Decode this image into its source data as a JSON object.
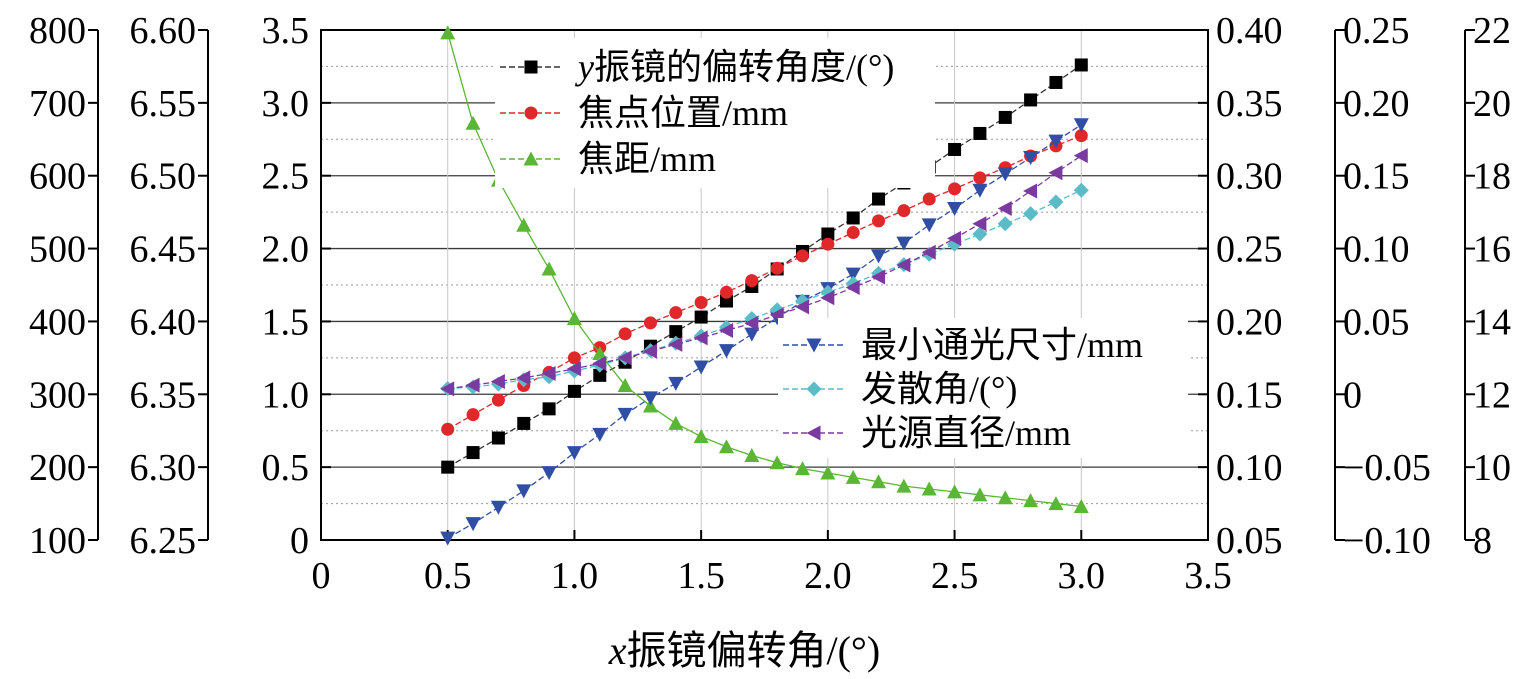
{
  "chart_data": {
    "type": "line",
    "xlabel_var": "x",
    "xlabel_rest": "振镜偏转角/(°)",
    "xlim": [
      0,
      3.5
    ],
    "x_ticks": [
      "0",
      "0.5",
      "1.0",
      "1.5",
      "2.0",
      "2.5",
      "3.0",
      "3.5"
    ],
    "x": [
      0.5,
      0.6,
      0.7,
      0.8,
      0.9,
      1.0,
      1.1,
      1.2,
      1.3,
      1.4,
      1.5,
      1.6,
      1.7,
      1.8,
      1.9,
      2.0,
      2.1,
      2.2,
      2.3,
      2.4,
      2.5,
      2.6,
      2.7,
      2.8,
      2.9,
      3.0
    ],
    "axes": [
      {
        "id": "ax-left-outer",
        "side": "left",
        "ylim": [
          100,
          800
        ],
        "ticks": [
          "100",
          "200",
          "300",
          "400",
          "500",
          "600",
          "700",
          "800"
        ]
      },
      {
        "id": "ax-left-middle",
        "side": "left",
        "ylim": [
          6.25,
          6.6
        ],
        "ticks": [
          "6.25",
          "6.30",
          "6.35",
          "6.40",
          "6.45",
          "6.50",
          "6.55",
          "6.60"
        ]
      },
      {
        "id": "ax-left-inner",
        "side": "left",
        "ylim": [
          0,
          3.5
        ],
        "ticks": [
          "0",
          "0.5",
          "1.0",
          "1.5",
          "2.0",
          "2.5",
          "3.0",
          "3.5"
        ]
      },
      {
        "id": "ax-right-inner",
        "side": "right",
        "ylim": [
          0.05,
          0.4
        ],
        "ticks": [
          "0.05",
          "0.10",
          "0.15",
          "0.20",
          "0.25",
          "0.30",
          "0.35",
          "0.40"
        ]
      },
      {
        "id": "ax-right-middle",
        "side": "right",
        "ylim": [
          -0.1,
          0.25
        ],
        "ticks": [
          "−0.10",
          "−0.05",
          "0",
          "0.05",
          "0.10",
          "0.15",
          "0.20",
          "0.25"
        ]
      },
      {
        "id": "ax-right-outer",
        "side": "right",
        "ylim": [
          8,
          22
        ],
        "ticks": [
          "8",
          "10",
          "12",
          "14",
          "16",
          "18",
          "20",
          "22"
        ]
      }
    ],
    "series": [
      {
        "id": "y-angle",
        "name_var": "y",
        "name_rest": "振镜的偏转角度/(°)",
        "axis": "ax-left-inner",
        "marker": "square",
        "color": "#000000",
        "line_color": "#333333",
        "values": [
          0.5,
          0.6,
          0.7,
          0.8,
          0.9,
          1.02,
          1.13,
          1.22,
          1.33,
          1.43,
          1.53,
          1.64,
          1.74,
          1.86,
          1.98,
          2.1,
          2.21,
          2.34,
          2.45,
          2.56,
          2.68,
          2.79,
          2.9,
          3.02,
          3.14,
          3.26
        ]
      },
      {
        "id": "focus-position",
        "name_var": "",
        "name_rest": "焦点位置/mm",
        "axis": "ax-left-outer",
        "marker": "circle",
        "color": "#e0282a",
        "line_color": "#e0282a",
        "values": [
          252,
          272,
          292,
          312,
          330,
          350,
          364,
          383,
          398,
          412,
          426,
          440,
          456,
          473,
          490,
          506,
          522,
          538,
          552,
          568,
          582,
          597,
          611,
          627,
          641,
          655
        ]
      },
      {
        "id": "focal-length",
        "name_var": "",
        "name_rest": "焦距/mm",
        "axis": "ax-left-middle",
        "marker": "triangle-up",
        "color": "#5cb636",
        "line_color": "#5cb636",
        "values": [
          6.598,
          6.536,
          6.497,
          6.466,
          6.436,
          6.402,
          6.378,
          6.356,
          6.342,
          6.33,
          6.321,
          6.314,
          6.308,
          6.303,
          6.299,
          6.296,
          6.293,
          6.29,
          6.287,
          6.285,
          6.283,
          6.281,
          6.279,
          6.277,
          6.275,
          6.273
        ]
      },
      {
        "id": "min-aperture",
        "name_var": "",
        "name_rest": "最小通光尺寸/mm",
        "axis": "ax-right-outer",
        "marker": "triangle-down",
        "color": "#2f4ea4",
        "line_color": "#2f4ea4",
        "values": [
          8.05,
          8.45,
          8.9,
          9.35,
          9.85,
          10.4,
          10.9,
          11.45,
          11.9,
          12.3,
          12.75,
          13.2,
          13.65,
          14.1,
          14.55,
          14.9,
          15.3,
          15.8,
          16.15,
          16.65,
          17.1,
          17.6,
          18.05,
          18.5,
          18.95,
          19.4
        ]
      },
      {
        "id": "divergence",
        "name_var": "",
        "name_rest": "发散角/(°)",
        "axis": "ax-right-inner",
        "marker": "diamond",
        "color": "#5bbcc8",
        "line_color": "#5bbcc8",
        "values": [
          0.154,
          0.155,
          0.157,
          0.16,
          0.162,
          0.166,
          0.17,
          0.175,
          0.18,
          0.185,
          0.19,
          0.196,
          0.202,
          0.208,
          0.214,
          0.22,
          0.226,
          0.233,
          0.239,
          0.246,
          0.253,
          0.26,
          0.267,
          0.274,
          0.282,
          0.29
        ]
      },
      {
        "id": "source-diameter",
        "name_var": "",
        "name_rest": "光源直径/mm",
        "axis": "ax-right-outer",
        "marker": "triangle-left",
        "color": "#7b3aa0",
        "line_color": "#7b3aa0",
        "values": [
          12.15,
          12.25,
          12.35,
          12.45,
          12.57,
          12.7,
          12.85,
          13.0,
          13.18,
          13.37,
          13.55,
          13.75,
          13.95,
          14.18,
          14.4,
          14.65,
          14.93,
          15.22,
          15.55,
          15.9,
          16.28,
          16.68,
          17.1,
          17.58,
          18.08,
          18.55
        ]
      }
    ]
  }
}
